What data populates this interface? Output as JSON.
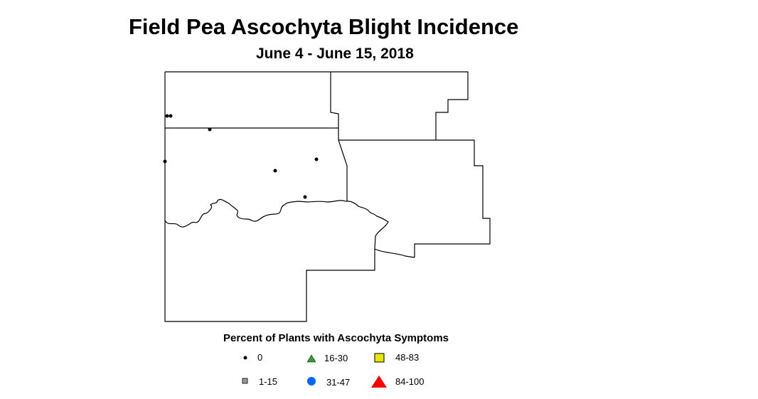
{
  "title": "Field Pea Ascochyta Blight Incidence",
  "subtitle": "June 4 - June 15, 2018",
  "legend": {
    "title": "Percent of Plants with Ascochyta Symptoms",
    "items": [
      {
        "label": "0",
        "symbol": "small-dot",
        "color": "#000000"
      },
      {
        "label": "1-15",
        "symbol": "square",
        "color": "#999999"
      },
      {
        "label": "16-30",
        "symbol": "triangle",
        "color": "#33a02c"
      },
      {
        "label": "31-47",
        "symbol": "circle",
        "color": "#0066ff"
      },
      {
        "label": "48-83",
        "symbol": "square",
        "color": "#e6e600"
      },
      {
        "label": "84-100",
        "symbol": "triangle",
        "color": "#ff0000"
      }
    ]
  },
  "sites": {
    "category": "0",
    "count": 7
  }
}
